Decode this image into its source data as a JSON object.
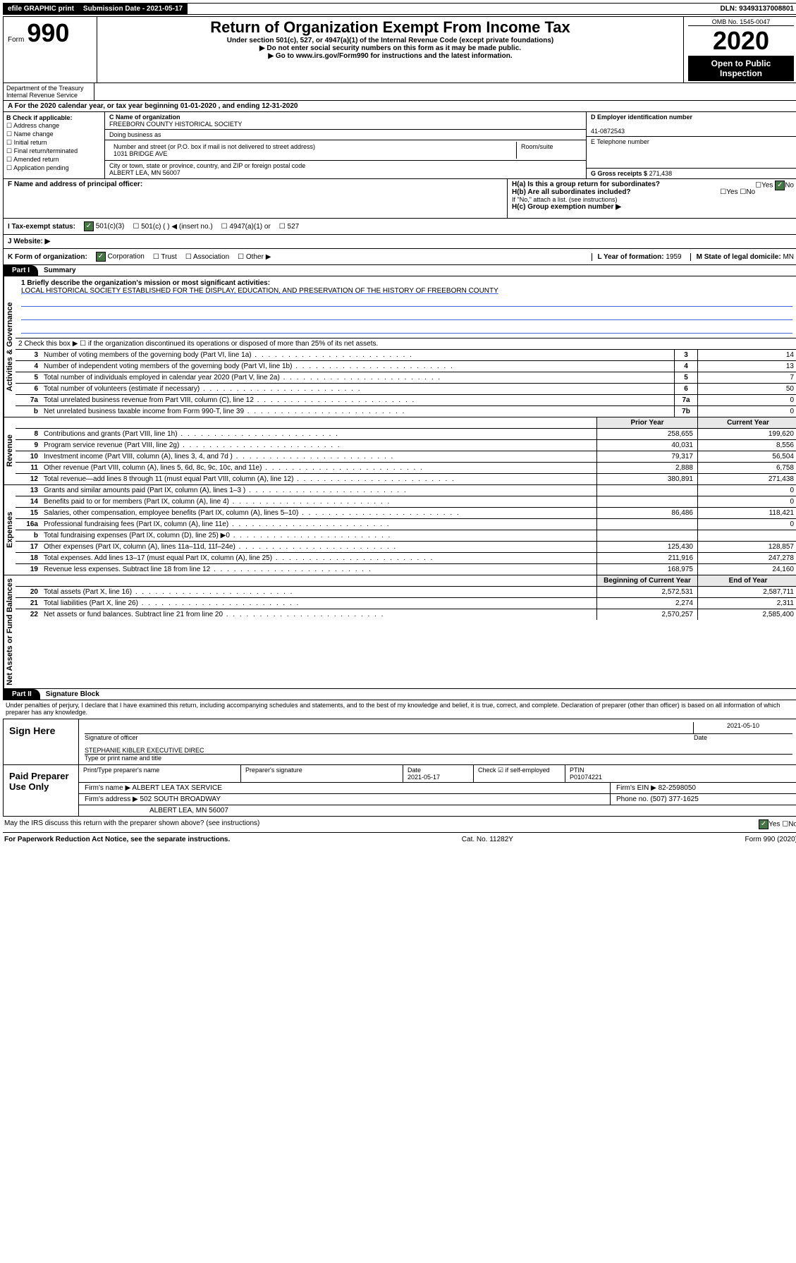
{
  "header": {
    "efile_label": "efile GRAPHIC print",
    "submission_label": "Submission Date - 2021-05-17",
    "dln": "DLN: 93493137008801",
    "form_prefix": "Form",
    "form_number": "990",
    "main_title": "Return of Organization Exempt From Income Tax",
    "under_section": "Under section 501(c), 527, or 4947(a)(1) of the Internal Revenue Code (except private foundations)",
    "ssn_notice": "▶ Do not enter social security numbers on this form as it may be made public.",
    "goto_notice": "▶ Go to www.irs.gov/Form990 for instructions and the latest information.",
    "omb": "OMB No. 1545-0047",
    "tax_year": "2020",
    "open_public": "Open to Public Inspection",
    "dept": "Department of the Treasury",
    "irs": "Internal Revenue Service"
  },
  "sectionA": {
    "calendar_line": "A  For the 2020 calendar year, or tax year beginning 01-01-2020    , and ending 12-31-2020",
    "check_label": "B Check if applicable:",
    "options": [
      "☐ Address change",
      "☐ Name change",
      "☐ Initial return",
      "☐ Final return/terminated",
      "☐ Amended return",
      "☐ Application pending"
    ],
    "c_name_label": "C Name of organization",
    "c_name_value": "FREEBORN COUNTY HISTORICAL SOCIETY",
    "dba_label": "Doing business as",
    "street_label": "Number and street (or P.O. box if mail is not delivered to street address)",
    "street_value": "1031 BRIDGE AVE",
    "room_label": "Room/suite",
    "city_label": "City or town, state or province, country, and ZIP or foreign postal code",
    "city_value": "ALBERT LEA, MN  56007",
    "d_ein_label": "D Employer identification number",
    "d_ein_value": "41-0872543",
    "e_phone_label": "E Telephone number",
    "g_receipts_label": "G Gross receipts $",
    "g_receipts_value": "271,438",
    "f_officer_label": "F Name and address of principal officer:",
    "ha_label": "H(a)  Is this a group return for subordinates?",
    "hb_label": "H(b)  Are all subordinates included?",
    "hb_note": "If \"No,\" attach a list. (see instructions)",
    "hc_label": "H(c)  Group exemption number ▶",
    "yes": "Yes",
    "no": "No"
  },
  "status": {
    "i_label": "I   Tax-exempt status:",
    "opt1": "501(c)(3)",
    "opt2": "501(c) (  ) ◀ (insert no.)",
    "opt3": "4947(a)(1) or",
    "opt4": "527",
    "j_label": "J   Website: ▶"
  },
  "korg": {
    "k_label": "K Form of organization:",
    "corp": "Corporation",
    "trust": "Trust",
    "assoc": "Association",
    "other": "Other ▶",
    "l_label": "L Year of formation:",
    "l_value": "1959",
    "m_label": "M State of legal domicile:",
    "m_value": "MN"
  },
  "part1": {
    "label": "Part I",
    "title": "Summary",
    "vlabel_gov": "Activities & Governance",
    "vlabel_rev": "Revenue",
    "vlabel_exp": "Expenses",
    "vlabel_net": "Net Assets or Fund Balances",
    "line1_label": "1  Briefly describe the organization's mission or most significant activities:",
    "line1_value": "LOCAL HISTORICAL SOCIETY ESTABLISHED FOR THE DISPLAY, EDUCATION, AND PRESERVATION OF THE HISTORY OF FREEBORN COUNTY",
    "line2_label": "2   Check this box ▶ ☐  if the organization discontinued its operations or disposed of more than 25% of its net assets.",
    "lines_gov": [
      {
        "n": "3",
        "desc": "Number of voting members of the governing body (Part VI, line 1a)",
        "box": "3",
        "val": "14"
      },
      {
        "n": "4",
        "desc": "Number of independent voting members of the governing body (Part VI, line 1b)",
        "box": "4",
        "val": "13"
      },
      {
        "n": "5",
        "desc": "Total number of individuals employed in calendar year 2020 (Part V, line 2a)",
        "box": "5",
        "val": "7"
      },
      {
        "n": "6",
        "desc": "Total number of volunteers (estimate if necessary)",
        "box": "6",
        "val": "50"
      },
      {
        "n": "7a",
        "desc": "Total unrelated business revenue from Part VIII, column (C), line 12",
        "box": "7a",
        "val": "0"
      },
      {
        "n": "b",
        "desc": "Net unrelated business taxable income from Form 990-T, line 39",
        "box": "7b",
        "val": "0"
      }
    ],
    "prior_year": "Prior Year",
    "current_year": "Current Year",
    "lines_rev": [
      {
        "n": "8",
        "desc": "Contributions and grants (Part VIII, line 1h)",
        "prior": "258,655",
        "curr": "199,620"
      },
      {
        "n": "9",
        "desc": "Program service revenue (Part VIII, line 2g)",
        "prior": "40,031",
        "curr": "8,556"
      },
      {
        "n": "10",
        "desc": "Investment income (Part VIII, column (A), lines 3, 4, and 7d )",
        "prior": "79,317",
        "curr": "56,504"
      },
      {
        "n": "11",
        "desc": "Other revenue (Part VIII, column (A), lines 5, 6d, 8c, 9c, 10c, and 11e)",
        "prior": "2,888",
        "curr": "6,758"
      },
      {
        "n": "12",
        "desc": "Total revenue—add lines 8 through 11 (must equal Part VIII, column (A), line 12)",
        "prior": "380,891",
        "curr": "271,438"
      }
    ],
    "lines_exp": [
      {
        "n": "13",
        "desc": "Grants and similar amounts paid (Part IX, column (A), lines 1–3 )",
        "prior": "",
        "curr": "0"
      },
      {
        "n": "14",
        "desc": "Benefits paid to or for members (Part IX, column (A), line 4)",
        "prior": "",
        "curr": "0"
      },
      {
        "n": "15",
        "desc": "Salaries, other compensation, employee benefits (Part IX, column (A), lines 5–10)",
        "prior": "86,486",
        "curr": "118,421"
      },
      {
        "n": "16a",
        "desc": "Professional fundraising fees (Part IX, column (A), line 11e)",
        "prior": "",
        "curr": "0"
      },
      {
        "n": "b",
        "desc": "Total fundraising expenses (Part IX, column (D), line 25) ▶0",
        "prior": "",
        "curr": ""
      },
      {
        "n": "17",
        "desc": "Other expenses (Part IX, column (A), lines 11a–11d, 11f–24e)",
        "prior": "125,430",
        "curr": "128,857"
      },
      {
        "n": "18",
        "desc": "Total expenses. Add lines 13–17 (must equal Part IX, column (A), line 25)",
        "prior": "211,916",
        "curr": "247,278"
      },
      {
        "n": "19",
        "desc": "Revenue less expenses. Subtract line 18 from line 12",
        "prior": "168,975",
        "curr": "24,160"
      }
    ],
    "beg_year": "Beginning of Current Year",
    "end_year": "End of Year",
    "lines_net": [
      {
        "n": "20",
        "desc": "Total assets (Part X, line 16)",
        "prior": "2,572,531",
        "curr": "2,587,711"
      },
      {
        "n": "21",
        "desc": "Total liabilities (Part X, line 26)",
        "prior": "2,274",
        "curr": "2,311"
      },
      {
        "n": "22",
        "desc": "Net assets or fund balances. Subtract line 21 from line 20",
        "prior": "2,570,257",
        "curr": "2,585,400"
      }
    ]
  },
  "part2": {
    "label": "Part II",
    "title": "Signature Block",
    "perjury": "Under penalties of perjury, I declare that I have examined this return, including accompanying schedules and statements, and to the best of my knowledge and belief, it is true, correct, and complete. Declaration of preparer (other than officer) is based on all information of which preparer has any knowledge.",
    "sign_here": "Sign Here",
    "sig_officer": "Signature of officer",
    "sig_date": "2021-05-10",
    "date_label": "Date",
    "officer_name": "STEPHANIE KIBLER EXECUTIVE DIREC",
    "type_name": "Type or print name and title",
    "paid_prep": "Paid Preparer Use Only",
    "prep_name_label": "Print/Type preparer's name",
    "prep_sig_label": "Preparer's signature",
    "prep_date_label": "Date",
    "prep_date": "2021-05-17",
    "check_self": "Check ☑ if self-employed",
    "ptin_label": "PTIN",
    "ptin_value": "P01074221",
    "firm_name_label": "Firm's name    ▶",
    "firm_name": "ALBERT LEA TAX SERVICE",
    "firm_ein_label": "Firm's EIN ▶",
    "firm_ein": "82-2598050",
    "firm_addr_label": "Firm's address ▶",
    "firm_addr1": "502 SOUTH BROADWAY",
    "firm_addr2": "ALBERT LEA, MN  56007",
    "phone_label": "Phone no.",
    "phone": "(507) 377-1625",
    "discuss": "May the IRS discuss this return with the preparer shown above? (see instructions)"
  },
  "footer": {
    "paperwork": "For Paperwork Reduction Act Notice, see the separate instructions.",
    "cat": "Cat. No. 11282Y",
    "form": "Form 990 (2020)"
  }
}
